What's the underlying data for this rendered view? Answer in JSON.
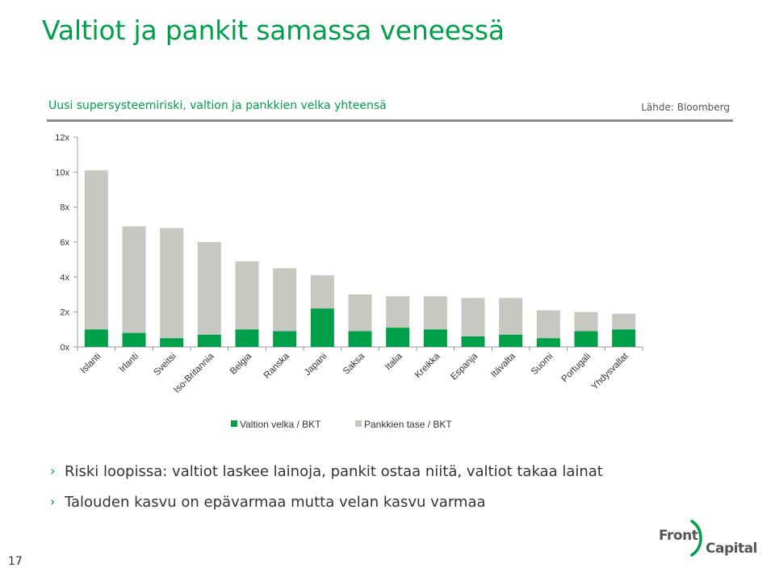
{
  "slide": {
    "title": "Valtiot ja pankit samassa veneessä",
    "subtitle": "Uusi supersysteemiriski, valtion ja pankkien velka yhteensä",
    "source": "Lähde: Bloomberg",
    "page_number": "17",
    "bullets": [
      "Riski loopissa: valtiot laskee lainoja, pankit ostaa niitä, valtiot takaa lainat",
      "Talouden kasvu on epävarmaa mutta velan kasvu varmaa"
    ],
    "logo": {
      "front": "Front",
      "capital": "Capital"
    }
  },
  "colors": {
    "accent": "#00A04A",
    "government": "#00A04A",
    "banks": "#C8C8C3",
    "axis": "#999999",
    "text": "#333333"
  },
  "icons": {
    "bullet": "chevron-right-icon",
    "logo": "front-capital-logo"
  },
  "chart_data": {
    "type": "bar",
    "stacked": true,
    "categories": [
      "Islanti",
      "Irlanti",
      "Sveitsi",
      "Iso-Britannia",
      "Belgia",
      "Ranska",
      "Japani",
      "Saksa",
      "Italia",
      "Kreikka",
      "Espanja",
      "Itävalta",
      "Suomi",
      "Portugali",
      "Yhdysvallat"
    ],
    "series": [
      {
        "name": "Valtion velka / BKT",
        "color": "#00A04A",
        "values": [
          1.0,
          0.8,
          0.5,
          0.7,
          1.0,
          0.9,
          2.2,
          0.9,
          1.1,
          1.0,
          0.6,
          0.7,
          0.5,
          0.9,
          1.0
        ]
      },
      {
        "name": "Pankkien tase / BKT",
        "color": "#C8C8C3",
        "values": [
          9.1,
          6.1,
          6.3,
          5.3,
          3.9,
          3.6,
          1.9,
          2.1,
          1.8,
          1.9,
          2.2,
          2.1,
          1.6,
          1.1,
          0.9
        ]
      }
    ],
    "ylim": [
      0,
      12
    ],
    "yticks": [
      0,
      2,
      4,
      6,
      8,
      10,
      12
    ],
    "ytick_labels": [
      "0x",
      "2x",
      "4x",
      "6x",
      "8x",
      "10x",
      "12x"
    ],
    "grid": false,
    "legend_position": "bottom"
  }
}
